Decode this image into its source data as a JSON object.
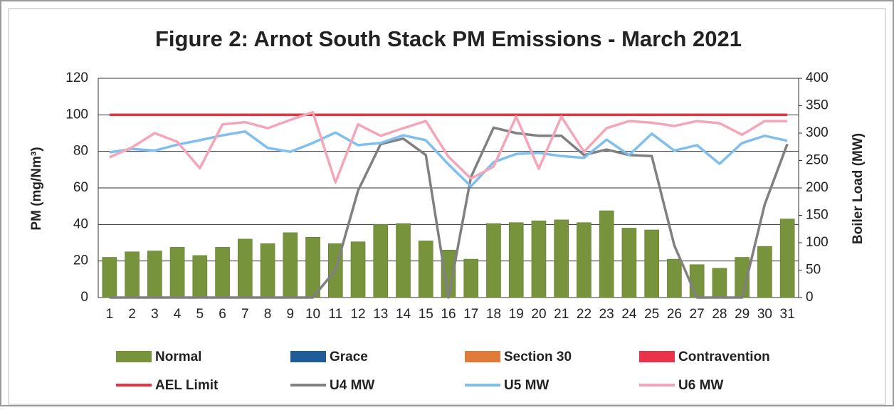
{
  "chart_data": {
    "type": "combo",
    "title": "Figure 2: Arnot South Stack PM Emissions -  March 2021",
    "y_label": "PM (mg/Nm³)",
    "y2_label": "Boiler Load (MW)",
    "categories": [
      "1",
      "2",
      "3",
      "4",
      "5",
      "6",
      "7",
      "8",
      "9",
      "10",
      "11",
      "12",
      "13",
      "14",
      "15",
      "16",
      "17",
      "18",
      "19",
      "20",
      "21",
      "22",
      "23",
      "24",
      "25",
      "26",
      "27",
      "28",
      "29",
      "30",
      "31"
    ],
    "ylim": [
      0,
      120
    ],
    "yticks": [
      0,
      20,
      40,
      60,
      80,
      100,
      120
    ],
    "y2lim": [
      0,
      400
    ],
    "y2ticks": [
      0,
      50,
      100,
      150,
      200,
      250,
      300,
      350,
      400
    ],
    "grid": true,
    "series": [
      {
        "name": "Normal",
        "kind": "bar",
        "color": "#77933c",
        "values": [
          22,
          25,
          25.5,
          27.5,
          23,
          27.5,
          32,
          29.5,
          35.5,
          33,
          29.5,
          30.5,
          40,
          40.5,
          31,
          26,
          21,
          40.5,
          41,
          42,
          42.5,
          41,
          47.5,
          38,
          37,
          21,
          18,
          16,
          22,
          28,
          43
        ]
      },
      {
        "name": "Grace",
        "kind": "bar",
        "color": "#1f5c99",
        "values": [
          0,
          0,
          0,
          0,
          0,
          0,
          0,
          0,
          0,
          0,
          0,
          0,
          0,
          0,
          0,
          0,
          0,
          0,
          0,
          0,
          0,
          0,
          0,
          0,
          0,
          0,
          0,
          0,
          0,
          0,
          0
        ]
      },
      {
        "name": "Section 30",
        "kind": "bar",
        "color": "#e07b39",
        "values": [
          0,
          0,
          0,
          0,
          0,
          0,
          0,
          0,
          0,
          0,
          0,
          0,
          0,
          0,
          0,
          0,
          0,
          0,
          0,
          0,
          0,
          0,
          0,
          0,
          0,
          0,
          0,
          0,
          0,
          0,
          0
        ]
      },
      {
        "name": "Contravention",
        "kind": "bar",
        "color": "#e8334a",
        "values": [
          0,
          0,
          0,
          0,
          0,
          0,
          0,
          0,
          0,
          0,
          0,
          0,
          0,
          0,
          0,
          0,
          0,
          0,
          0,
          0,
          0,
          0,
          0,
          0,
          0,
          0,
          0,
          0,
          0,
          0,
          0
        ]
      },
      {
        "name": "AEL Limit",
        "kind": "line",
        "color": "#e8343f",
        "values": [
          100,
          100,
          100,
          100,
          100,
          100,
          100,
          100,
          100,
          100,
          100,
          100,
          100,
          100,
          100,
          100,
          100,
          100,
          100,
          100,
          100,
          100,
          100,
          100,
          100,
          100,
          100,
          100,
          100,
          100,
          100
        ]
      },
      {
        "name": "U4 MW",
        "kind": "line",
        "axis": "y2",
        "color": "#808080",
        "values": [
          0,
          0,
          0,
          0,
          0,
          0,
          0,
          0,
          0,
          0,
          50,
          195,
          280,
          290,
          260,
          0,
          220,
          310,
          300,
          295,
          295,
          260,
          270,
          260,
          258,
          95,
          0,
          0,
          0,
          170,
          280
        ]
      },
      {
        "name": "U5 MW",
        "kind": "line",
        "axis": "y2",
        "color": "#7fbfef",
        "values": [
          265,
          271,
          268,
          279,
          287,
          296,
          303,
          273,
          266,
          282,
          301,
          278,
          282,
          296,
          287,
          243,
          203,
          247,
          262,
          264,
          258,
          255,
          288,
          260,
          299,
          268,
          278,
          244,
          282,
          295,
          286
        ]
      },
      {
        "name": "U6 MW",
        "kind": "line",
        "axis": "y2",
        "color": "#f4a6b8",
        "values": [
          256,
          274,
          300,
          284,
          236,
          316,
          320,
          309,
          324,
          338,
          210,
          316,
          295,
          309,
          322,
          257,
          217,
          239,
          330,
          235,
          330,
          266,
          309,
          322,
          319,
          313,
          322,
          318,
          297,
          322,
          322
        ]
      }
    ]
  }
}
